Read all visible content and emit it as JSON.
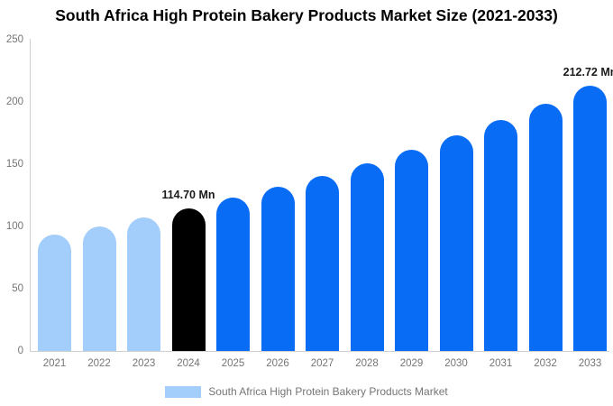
{
  "title": "South Africa High Protein Bakery Products Market Size (2021-2033)",
  "legend": {
    "label": "South Africa High Protein Bakery Products Market",
    "swatch_color": "#a3cdfa"
  },
  "colors": {
    "historical_bar": "#a3cdfa",
    "base_year_bar": "#000000",
    "forecast_bar": "#086cf5",
    "axis_line": "#cfcfcf",
    "tick_text": "#757575",
    "annotation_text": "#1a1a1a"
  },
  "chart_data": {
    "type": "bar",
    "title": "South Africa High Protein Bakery Products Market Size (2021-2033)",
    "categories": [
      "2021",
      "2022",
      "2023",
      "2024",
      "2025",
      "2026",
      "2027",
      "2028",
      "2029",
      "2030",
      "2031",
      "2032",
      "2033"
    ],
    "values": [
      93.3,
      100.0,
      107.1,
      114.7,
      122.9,
      131.6,
      140.9,
      151.0,
      161.7,
      173.2,
      185.5,
      198.7,
      212.72
    ],
    "unit": "Mn",
    "bar_colors": [
      "#a3cdfa",
      "#a3cdfa",
      "#a3cdfa",
      "#000000",
      "#086cf5",
      "#086cf5",
      "#086cf5",
      "#086cf5",
      "#086cf5",
      "#086cf5",
      "#086cf5",
      "#086cf5",
      "#086cf5"
    ],
    "annotations": [
      {
        "index": 3,
        "text": "114.70 Mn"
      },
      {
        "index": 12,
        "text": "212.72 Mn"
      }
    ],
    "xlabel": "",
    "ylabel": "",
    "ylim": [
      0,
      250
    ],
    "yticks": [
      0,
      50,
      100,
      150,
      200,
      250
    ],
    "grid": false,
    "legend_position": "bottom"
  }
}
